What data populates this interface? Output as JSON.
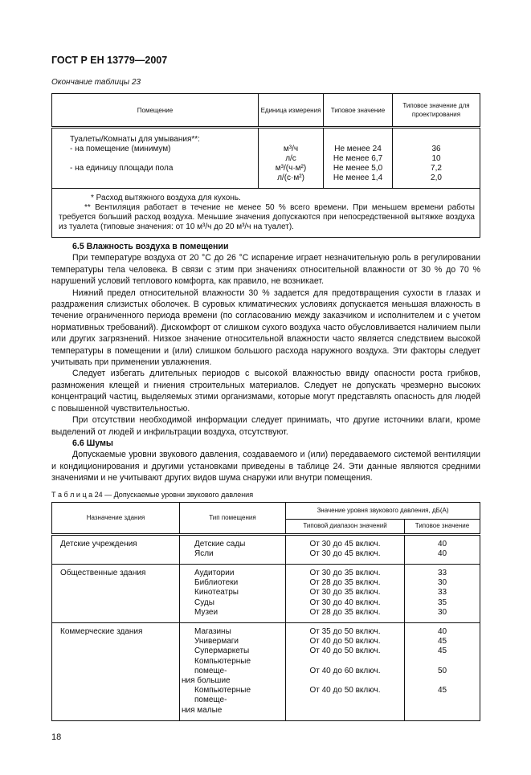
{
  "header": "ГОСТ Р ЕН 13779—2007",
  "table23": {
    "caption": "Окончание таблицы 23",
    "columns": [
      "Помещение",
      "Единица измерения",
      "Типовое значение",
      "Типовое значение для проектирования"
    ],
    "room_lines": [
      "Туалеты/Комнаты для умывания**:",
      "- на помещение (минимум)",
      "",
      "- на единицу площади пола",
      ""
    ],
    "units": [
      "м³/ч",
      "л/с",
      "м³/(ч·м²)",
      "л/(с·м²)"
    ],
    "typical": [
      "Не менее 24",
      "Не менее 6,7",
      "Не менее 5,0",
      "Не менее 1,4"
    ],
    "design": [
      "36",
      "10",
      "7,2",
      "2,0"
    ],
    "note1": "* Расход вытяжного воздуха для кухонь.",
    "note2": "** Вентиляция работает в течение не менее 50 % всего времени. При меньшем времени работы требуется больший расход воздуха. Меньшие значения допускаются при непосредственной вытяжке воздуха из туалета (типовые значения: от 10 м³/ч до 20 м³/ч на туалет)."
  },
  "section65": {
    "title": "6.5 Влажность воздуха в помещении",
    "paragraphs": [
      "При температуре воздуха от 20 °С до 26 °С испарение играет незначительную роль в регулировании температуры тела человека. В связи с этим при значениях относительной влажности от 30 % до 70 % нарушений условий теплового комфорта, как правило, не возникает.",
      "Нижний предел относительной влажности 30 % задается для предотвращения сухости в глазах и раздражения слизистых оболочек. В суровых климатических условиях допускается меньшая влажность в течение ограниченного периода времени (по согласованию между заказчиком и исполнителем и с учетом нормативных требований). Дискомфорт от слишком сухого воздуха часто обусловливается наличием пыли или других загрязнений. Низкое значение относительной влажности часто является следствием высокой температуры в помещении и (или) слишком большого расхода наружного воздуха. Эти факторы следует учитывать при применении увлажнения.",
      "Следует избегать длительных периодов с высокой влажностью ввиду опасности роста грибков, размножения клещей и гниения строительных материалов. Следует не допускать чрезмерно высоких концентраций частиц, выделяемых этими организмами, которые могут представлять опасность для людей с повышенной чувствительностью.",
      "При отсутствии необходимой информации следует принимать, что другие источники влаги, кроме выделений от людей и инфильтрации воздуха, отсутствуют."
    ]
  },
  "section66": {
    "title": "6.6 Шумы",
    "paragraph": "Допускаемые уровни звукового давления, создаваемого и (или) передаваемого системой вентиляции и кондиционирования и другими установками приведены в таблице 24. Эти данные являются средними значениями и не учитывают других видов шума снаружи или внутри помещения."
  },
  "table24": {
    "caption": "Т а б л и ц а  24 — Допускаемые уровни звукового давления",
    "col_building": "Назначение здания",
    "col_room": "Тип помещения",
    "col_level": "Значение уровня звукового давления, дБ(А)",
    "col_range": "Типовой диапазон значений",
    "col_value": "Типовое значение",
    "groups": [
      {
        "building": "Детские учреждения",
        "rooms": [
          "Детские сады",
          "Ясли"
        ],
        "ranges": [
          "От 30 до 45 включ.",
          "От 30 до 45 включ."
        ],
        "values": [
          "40",
          "40"
        ]
      },
      {
        "building": "Общественные здания",
        "rooms": [
          "Аудитории",
          "Библиотеки",
          "Кинотеатры",
          "Суды",
          "Музеи"
        ],
        "ranges": [
          "От 30 до 35 включ.",
          "От 28 до 35 включ.",
          "От 30 до 35 включ.",
          "От 30 до 40 включ.",
          "От 28 до 35 включ."
        ],
        "values": [
          "33",
          "30",
          "33",
          "35",
          "30"
        ]
      },
      {
        "building": "Коммерческие здания",
        "rooms": [
          "Магазины",
          "Универмаги",
          "Супермаркеты",
          "Компьютерные помеще-",
          "ния большие",
          "Компьютерные помеще-",
          "ния малые"
        ],
        "ranges": [
          "От 35 до 50 включ.",
          "От 40 до 50 включ.",
          "От 40 до 50 включ.",
          "",
          "От 40 до 60 включ.",
          "",
          "От 40 до 50 включ."
        ],
        "values": [
          "40",
          "45",
          "45",
          "",
          "50",
          "",
          "45"
        ]
      }
    ]
  },
  "page_number": "18"
}
